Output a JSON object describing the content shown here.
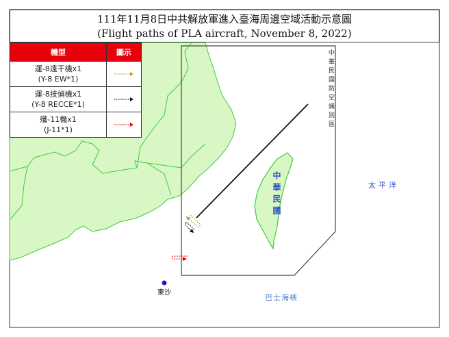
{
  "title": {
    "zh": "111年11月8日中共解放軍進入臺海周邊空域活動示意圖",
    "en": "(Flight paths of PLA aircraft, November 8, 2022)"
  },
  "legend": {
    "header_type": "機型",
    "header_symbol": "圖示",
    "items": [
      {
        "zh": "運-8遠干機x1",
        "en": "(Y-8 EW*1)",
        "color": "#c8963c"
      },
      {
        "zh": "運-8技偵機x1",
        "en": "(Y-8 RECCE*1)",
        "color": "#111111"
      },
      {
        "zh": "殲-11機x1",
        "en": "(J-11*1)",
        "color": "#e8000b"
      }
    ]
  },
  "map": {
    "adiz_label": "中華民國防空識別區",
    "taiwan_label": "中華民國",
    "pacific_label": "太平洋",
    "bashi_label": "巴士海峽",
    "dongsha_label": "東沙",
    "land_color": "#d9f7c4",
    "coast_color": "#3ccc3c",
    "label_color": "#2b4fc4"
  }
}
